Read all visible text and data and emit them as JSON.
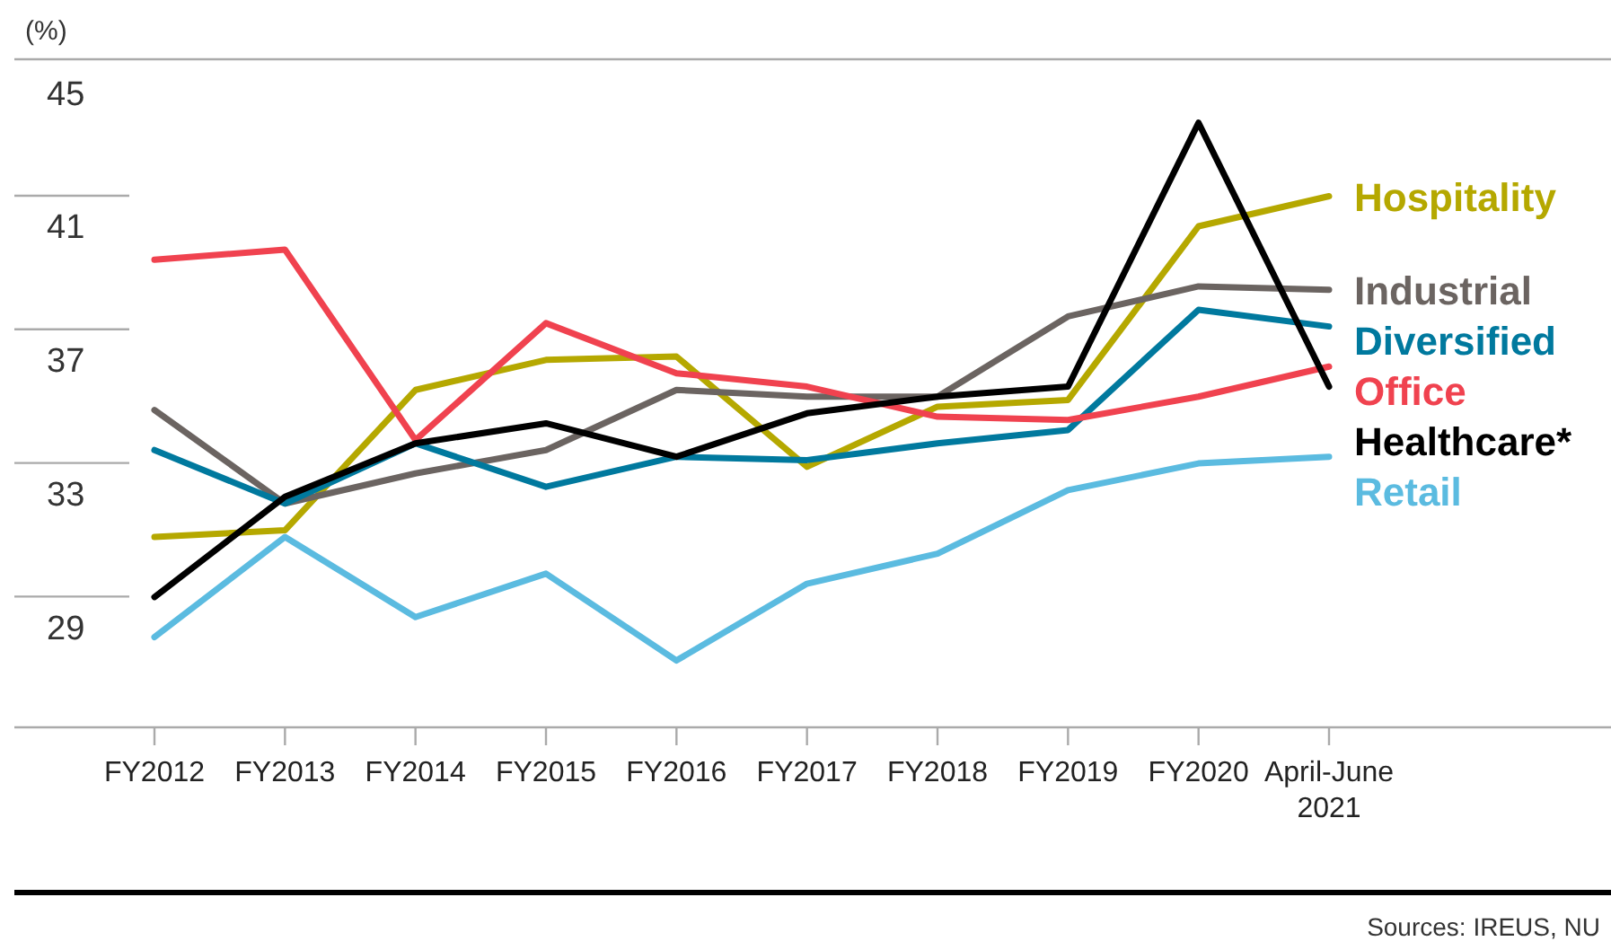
{
  "chart_data": {
    "type": "line",
    "ylabel": "(%)",
    "categories": [
      "FY2012",
      "FY2013",
      "FY2014",
      "FY2015",
      "FY2016",
      "FY2017",
      "FY2018",
      "FY2019",
      "FY2020",
      "April-June 2021"
    ],
    "ylim": [
      26,
      46
    ],
    "yticks": [
      29,
      33,
      37,
      41,
      45
    ],
    "legend": "right",
    "marker": "none",
    "line_style": "solid",
    "series": [
      {
        "name": "Hospitality",
        "color": "#b5a800",
        "values": [
          31.7,
          31.9,
          36.1,
          37.0,
          37.1,
          33.8,
          35.6,
          35.8,
          41.0,
          41.9
        ]
      },
      {
        "name": "Industrial",
        "color": "#6b6461",
        "values": [
          35.5,
          32.7,
          33.6,
          34.3,
          36.1,
          35.9,
          35.9,
          38.3,
          39.2,
          39.1
        ]
      },
      {
        "name": "Diversified",
        "color": "#00799e",
        "values": [
          34.3,
          32.7,
          34.5,
          33.2,
          34.1,
          34.0,
          34.5,
          34.9,
          38.5,
          38.0
        ]
      },
      {
        "name": "Office",
        "color": "#f0424f",
        "values": [
          40.0,
          40.3,
          34.6,
          38.1,
          36.6,
          36.2,
          35.3,
          35.2,
          35.9,
          36.8
        ]
      },
      {
        "name": "Healthcare*",
        "color": "#000000",
        "values": [
          29.9,
          32.9,
          34.5,
          35.1,
          34.1,
          35.4,
          35.9,
          36.2,
          44.1,
          36.2
        ]
      },
      {
        "name": "Retail",
        "color": "#5bbbe0",
        "values": [
          28.7,
          31.7,
          29.3,
          30.6,
          28.0,
          30.3,
          31.2,
          33.1,
          33.9,
          34.1
        ]
      }
    ],
    "annotations": [
      "Sources: IREUS, NU"
    ]
  }
}
